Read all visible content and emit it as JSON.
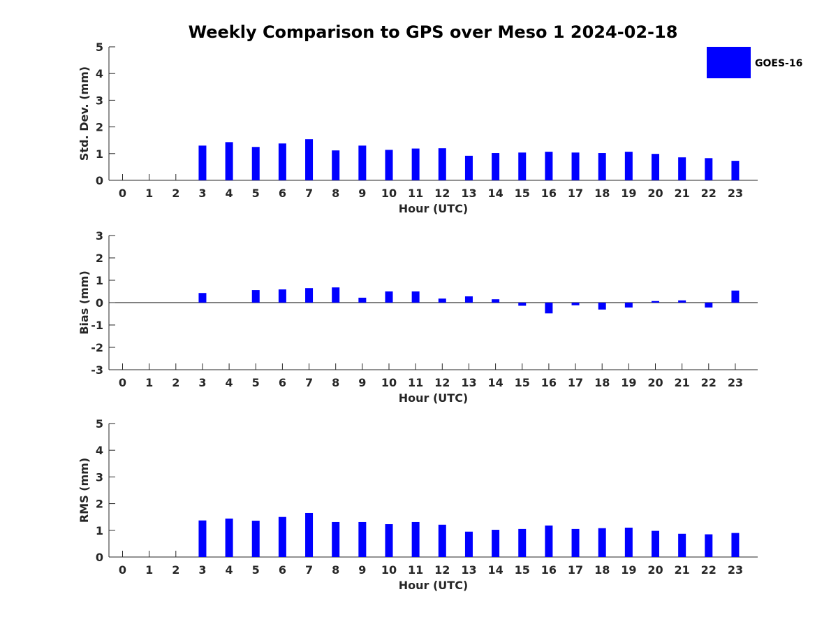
{
  "chart_data": {
    "type": "bar",
    "title": "Weekly Comparison to GPS over Meso 1 2024-02-18",
    "legend": {
      "placement": "top-right",
      "entries": [
        {
          "name": "GOES-16",
          "color": "#0000ff"
        }
      ]
    },
    "categories": [
      "0",
      "1",
      "2",
      "3",
      "4",
      "5",
      "6",
      "7",
      "8",
      "9",
      "10",
      "11",
      "12",
      "13",
      "14",
      "15",
      "16",
      "17",
      "18",
      "19",
      "20",
      "21",
      "22",
      "23"
    ],
    "panels": [
      {
        "type": "bar",
        "ylabel": "Std. Dev. (mm)",
        "xlabel": "Hour (UTC)",
        "ylim": [
          0,
          5
        ],
        "yticks": [
          "0",
          "1",
          "2",
          "3",
          "4",
          "5"
        ],
        "series": [
          {
            "name": "GOES-16",
            "color": "#0000ff",
            "values": [
              null,
              null,
              null,
              1.3,
              1.43,
              1.25,
              1.38,
              1.54,
              1.12,
              1.3,
              1.14,
              1.19,
              1.2,
              0.92,
              1.02,
              1.04,
              1.07,
              1.04,
              1.02,
              1.07,
              0.99,
              0.86,
              0.83,
              0.73
            ]
          }
        ]
      },
      {
        "type": "bar",
        "ylabel": "Bias (mm)",
        "xlabel": "Hour (UTC)",
        "ylim": [
          -3,
          3
        ],
        "yticks": [
          "-3",
          "-2",
          "-1",
          "0",
          "1",
          "2",
          "3"
        ],
        "series": [
          {
            "name": "GOES-16",
            "color": "#0000ff",
            "values": [
              null,
              null,
              null,
              0.43,
              null,
              0.56,
              0.59,
              0.65,
              0.68,
              0.22,
              0.5,
              0.5,
              0.18,
              0.28,
              0.15,
              -0.14,
              -0.48,
              -0.12,
              -0.31,
              -0.22,
              0.07,
              0.1,
              -0.22,
              0.54
            ]
          }
        ]
      },
      {
        "type": "bar",
        "ylabel": "RMS (mm)",
        "xlabel": "Hour (UTC)",
        "ylim": [
          0,
          5
        ],
        "yticks": [
          "0",
          "1",
          "2",
          "3",
          "4",
          "5"
        ],
        "series": [
          {
            "name": "GOES-16",
            "color": "#0000ff",
            "values": [
              null,
              null,
              null,
              1.37,
              1.44,
              1.36,
              1.5,
              1.65,
              1.31,
              1.31,
              1.23,
              1.31,
              1.21,
              0.95,
              1.02,
              1.05,
              1.18,
              1.05,
              1.08,
              1.1,
              0.98,
              0.87,
              0.85,
              0.9
            ]
          }
        ]
      }
    ]
  }
}
